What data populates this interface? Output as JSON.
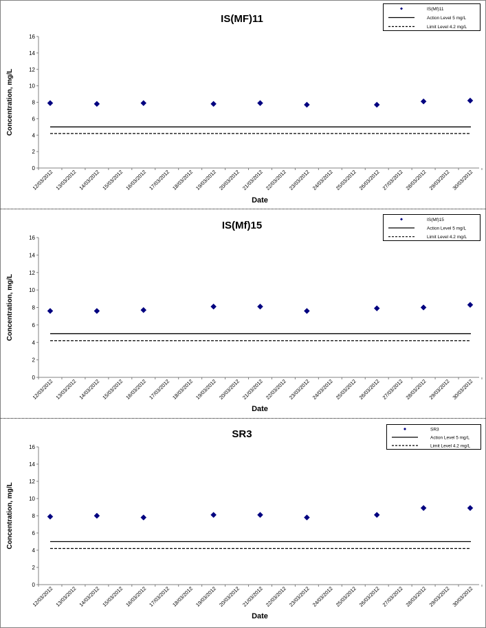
{
  "chart_data": [
    {
      "type": "scatter",
      "title": "IS(MF)11",
      "xlabel": "Date",
      "ylabel": "Concentration, mg/L",
      "ylim": [
        0,
        16
      ],
      "yticks": [
        "0",
        "2",
        "4",
        "6",
        "8",
        "10",
        "12",
        "14",
        "16"
      ],
      "categories": [
        "12/03/2012",
        "13/03/2012",
        "14/03/2012",
        "15/03/2012",
        "16/03/2012",
        "17/03/2012",
        "18/03/2012",
        "19/03/2012",
        "20/03/2012",
        "21/03/2012",
        "22/03/2012",
        "23/03/2012",
        "24/03/2012",
        "25/03/2012",
        "26/03/2012",
        "27/03/2012",
        "28/03/2012",
        "29/03/2012",
        "30/03/2012"
      ],
      "grid": false,
      "legend_position": "top-right",
      "series": [
        {
          "name": "IS(Mf)11",
          "kind": "points",
          "color": "#000080",
          "x": [
            "12/03/2012",
            "14/03/2012",
            "16/03/2012",
            "19/03/2012",
            "21/03/2012",
            "23/03/2012",
            "26/03/2012",
            "28/03/2012",
            "30/03/2012"
          ],
          "values": [
            7.9,
            7.8,
            7.9,
            7.8,
            7.9,
            7.7,
            7.7,
            8.1,
            8.2
          ]
        },
        {
          "name": "Action Level 5 mg/L",
          "kind": "solid-line",
          "color": "#000000",
          "value": 5
        },
        {
          "name": "Limit Level 4.2 mg/L",
          "kind": "dashed-line",
          "color": "#000000",
          "value": 4.2
        }
      ]
    },
    {
      "type": "scatter",
      "title": "IS(Mf)15",
      "xlabel": "Date",
      "ylabel": "Concentration, mg/L",
      "ylim": [
        0,
        16
      ],
      "yticks": [
        "0",
        "2",
        "4",
        "6",
        "8",
        "10",
        "12",
        "14",
        "16"
      ],
      "categories": [
        "12/03/2012",
        "13/03/2012",
        "14/03/2012",
        "15/03/2012",
        "16/03/2012",
        "17/03/2012",
        "18/03/2012",
        "19/03/2012",
        "20/03/2012",
        "21/03/2012",
        "22/03/2012",
        "23/03/2012",
        "24/03/2012",
        "25/03/2012",
        "26/03/2012",
        "27/03/2012",
        "28/03/2012",
        "29/03/2012",
        "30/03/2012"
      ],
      "grid": false,
      "legend_position": "top-right",
      "series": [
        {
          "name": "IS(Mf)15",
          "kind": "points",
          "color": "#000080",
          "x": [
            "12/03/2012",
            "14/03/2012",
            "16/03/2012",
            "19/03/2012",
            "21/03/2012",
            "23/03/2012",
            "26/03/2012",
            "28/03/2012",
            "30/03/2012"
          ],
          "values": [
            7.6,
            7.6,
            7.7,
            8.1,
            8.1,
            7.6,
            7.9,
            8.0,
            8.3
          ]
        },
        {
          "name": "Action Level 5 mg/L",
          "kind": "solid-line",
          "color": "#000000",
          "value": 5
        },
        {
          "name": "Limit Level 4.2 mg/L",
          "kind": "dashed-line",
          "color": "#000000",
          "value": 4.2
        }
      ]
    },
    {
      "type": "scatter",
      "title": "SR3",
      "xlabel": "Date",
      "ylabel": "Concentration, mg/L",
      "ylim": [
        0,
        16
      ],
      "yticks": [
        "0",
        "2",
        "4",
        "6",
        "8",
        "10",
        "12",
        "14",
        "16"
      ],
      "categories": [
        "12/03/2012",
        "13/03/2012",
        "14/03/2012",
        "15/03/2012",
        "16/03/2012",
        "17/03/2012",
        "18/03/2012",
        "19/03/2012",
        "20/03/2012",
        "21/03/2012",
        "22/03/2012",
        "23/03/2012",
        "24/03/2012",
        "25/03/2012",
        "26/03/2012",
        "27/03/2012",
        "28/03/2012",
        "29/03/2012",
        "30/03/2012"
      ],
      "grid": false,
      "legend_position": "top-right",
      "series": [
        {
          "name": "SR3",
          "kind": "points",
          "color": "#000080",
          "x": [
            "12/03/2012",
            "14/03/2012",
            "16/03/2012",
            "19/03/2012",
            "21/03/2012",
            "23/03/2012",
            "26/03/2012",
            "28/03/2012",
            "30/03/2012"
          ],
          "values": [
            7.9,
            8.0,
            7.8,
            8.1,
            8.1,
            7.8,
            8.1,
            8.9,
            8.9
          ]
        },
        {
          "name": "Action Level 5 mg/L",
          "kind": "solid-line",
          "color": "#000000",
          "value": 5
        },
        {
          "name": "Limit Level 4.2 mg/L",
          "kind": "dashed-line",
          "color": "#000000",
          "value": 4.2
        }
      ]
    }
  ]
}
